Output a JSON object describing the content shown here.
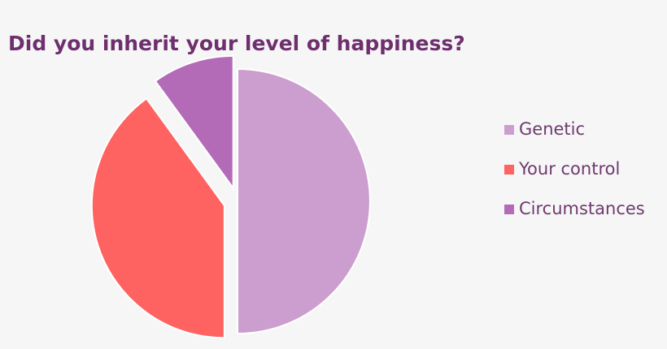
{
  "chart_data": {
    "type": "pie",
    "title": "Did you inherit your level of happiness?",
    "categories": [
      "Genetic",
      "Your control",
      "Circumstances"
    ],
    "values": [
      50,
      40,
      10
    ],
    "colors": [
      "#cc9ecf",
      "#ff6361",
      "#b36bb8"
    ],
    "legend": "right"
  }
}
